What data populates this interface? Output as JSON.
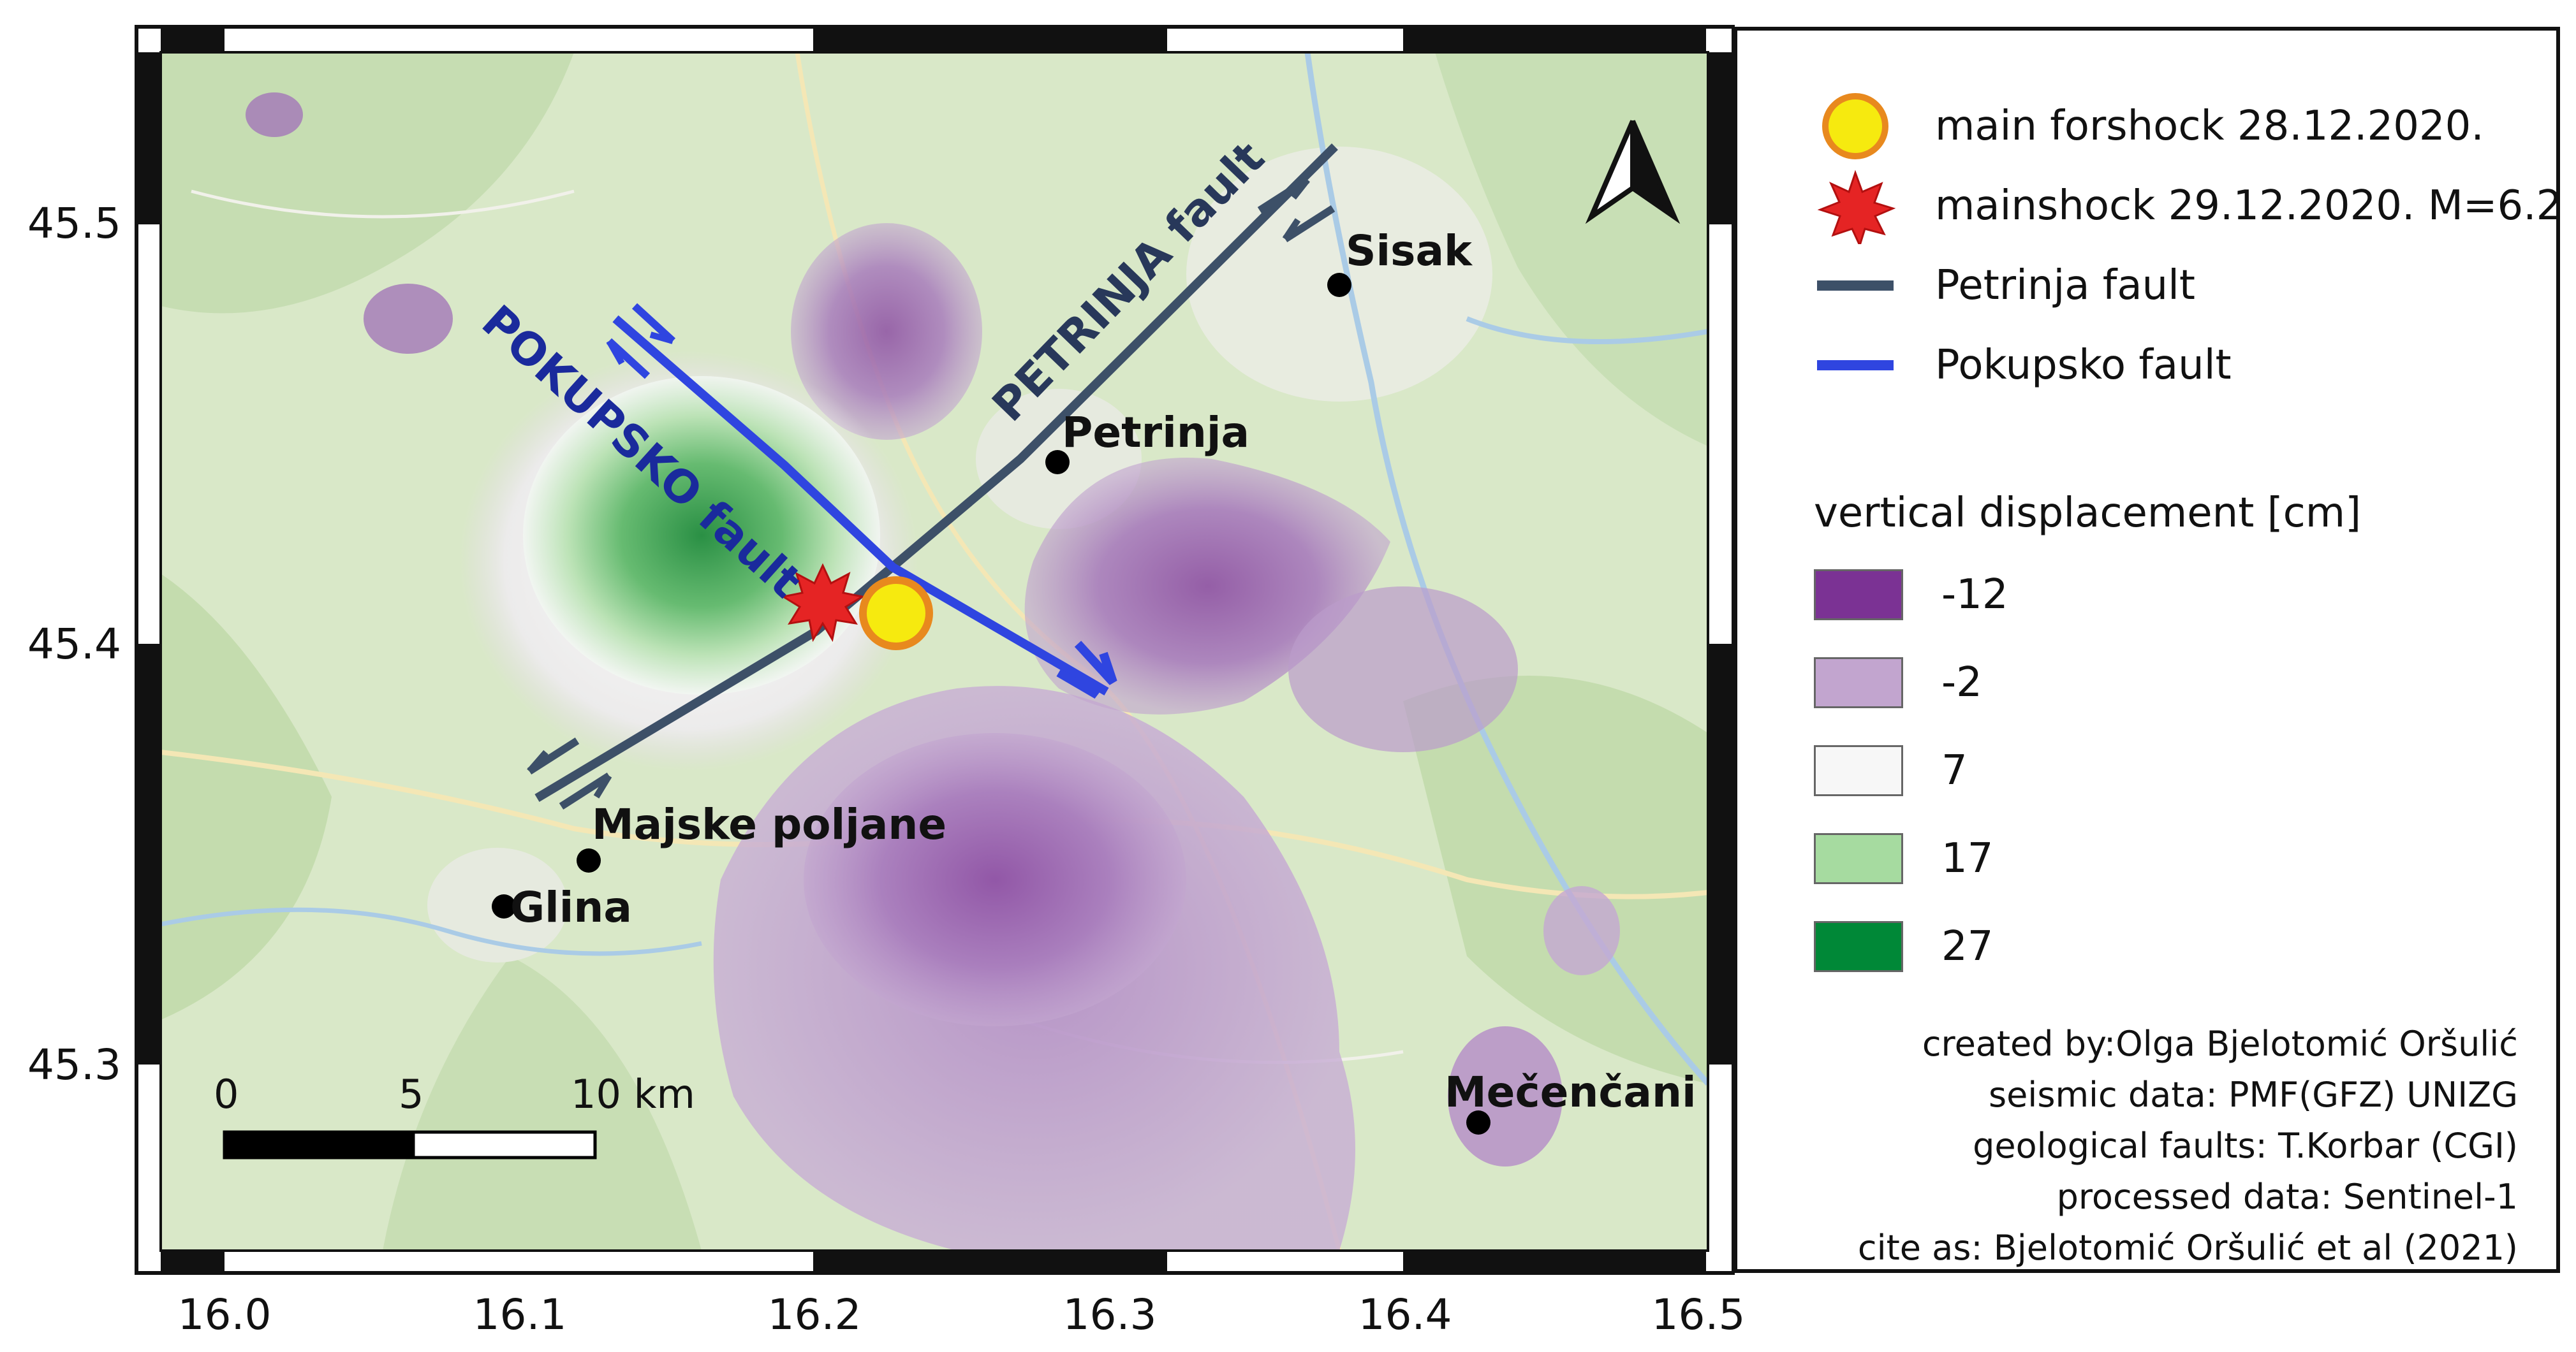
{
  "axes": {
    "y_ticks": [
      "45.5",
      "45.4",
      "45.3"
    ],
    "x_ticks": [
      "16.0",
      "16.1",
      "16.2",
      "16.3",
      "16.4",
      "16.5"
    ]
  },
  "places": [
    {
      "name": "Sisak"
    },
    {
      "name": "Petrinja"
    },
    {
      "name": "Majske poljane"
    },
    {
      "name": "Glina"
    },
    {
      "name": "Mečenčani"
    }
  ],
  "faults": {
    "pokupsko_label": "POKUPSKO fault",
    "petrinja_label": "PETRINJA fault"
  },
  "scale_bar": {
    "label_0": "0",
    "label_5": "5",
    "label_10": "10 km"
  },
  "legend": {
    "items": [
      {
        "label": "main forshock 28.12.2020.",
        "symbol": "yellow-circle"
      },
      {
        "label": "mainshock 29.12.2020. M=6.2",
        "symbol": "red-star"
      },
      {
        "label": "Petrinja fault",
        "color": "#3d5068"
      },
      {
        "label": "Pokupsko fault",
        "color": "#2f45e0"
      }
    ],
    "displacement_title": "vertical displacement [cm]",
    "classes": [
      {
        "value": "-12",
        "color": "#7b3294"
      },
      {
        "value": "-2",
        "color": "#c2a5cf"
      },
      {
        "value": "7",
        "color": "#f7f7f7"
      },
      {
        "value": "17",
        "color": "#a6dba0"
      },
      {
        "value": "27",
        "color": "#008837"
      }
    ]
  },
  "credits": [
    "created by:Olga Bjelotomić Oršulić",
    "seismic data: PMF(GFZ) UNIZG",
    "geological faults: T.Korbar (CGI)",
    "processed data: Sentinel-1",
    "cite as: Bjelotomić Oršulić et al (2021)"
  ]
}
